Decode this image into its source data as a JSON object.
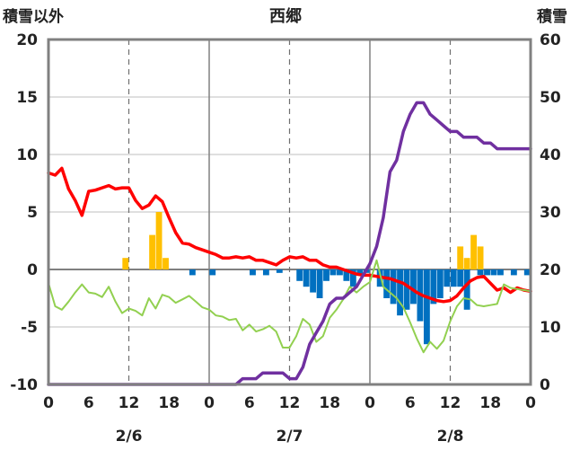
{
  "chart_data": {
    "type": "combo",
    "title": "西郷",
    "left_axis_label": "積雪以外",
    "right_axis_label": "積雪",
    "left_ylim": [
      -10,
      20
    ],
    "left_ticks": [
      "20",
      "15",
      "10",
      "5",
      "0",
      "-5",
      "-10"
    ],
    "right_ylim": [
      0,
      60
    ],
    "right_ticks": [
      "60",
      "50",
      "40",
      "30",
      "20",
      "10",
      "0"
    ],
    "x_hours_range": [
      0,
      72
    ],
    "x_tick_hours": [
      0,
      6,
      12,
      18,
      24,
      30,
      36,
      42,
      48,
      54,
      60,
      66,
      72
    ],
    "x_tick_labels": [
      "0",
      "6",
      "12",
      "18",
      "0",
      "6",
      "12",
      "18",
      "0",
      "6",
      "12",
      "18",
      "0"
    ],
    "day_labels": [
      {
        "hour": 12,
        "label": "2/6"
      },
      {
        "hour": 36,
        "label": "2/7"
      },
      {
        "hour": 60,
        "label": "2/8"
      }
    ],
    "grid": {
      "dashed_hours": [
        12,
        36,
        60
      ],
      "solid_hours": [
        24,
        48
      ],
      "horizontal": true
    },
    "colors": {
      "red": "#ff0000",
      "green": "#92d050",
      "purple": "#7030a0",
      "orange_bar": "#ffc000",
      "blue_bar": "#0070c0"
    },
    "series": [
      {
        "type": "line",
        "axis": "left",
        "color": "#ff0000",
        "values": [
          8.4,
          8.2,
          8.8,
          7.0,
          6.0,
          4.7,
          6.8,
          6.9,
          7.1,
          7.3,
          7.0,
          7.1,
          7.1,
          6.0,
          5.3,
          5.6,
          6.4,
          5.9,
          4.5,
          3.2,
          2.3,
          2.2,
          1.9,
          1.7,
          1.5,
          1.3,
          1.0,
          1.0,
          1.1,
          1.0,
          1.1,
          0.8,
          0.8,
          0.6,
          0.4,
          0.8,
          1.1,
          1.0,
          1.1,
          0.8,
          0.8,
          0.4,
          0.2,
          0.2,
          0.0,
          -0.2,
          -0.4,
          -0.5,
          -0.5,
          -0.6,
          -0.7,
          -0.8,
          -1.0,
          -1.2,
          -1.6,
          -2.0,
          -2.3,
          -2.5,
          -2.7,
          -2.8,
          -2.7,
          -2.3,
          -1.6,
          -1.0,
          -0.7,
          -0.6,
          -1.2,
          -1.8,
          -1.6,
          -2.0,
          -1.6,
          -1.8,
          -1.9
        ]
      },
      {
        "type": "line",
        "axis": "left",
        "color": "#92d050",
        "values": [
          -1.2,
          -3.2,
          -3.5,
          -2.8,
          -2.0,
          -1.3,
          -2.0,
          -2.1,
          -2.4,
          -1.5,
          -2.8,
          -3.8,
          -3.4,
          -3.6,
          -4.0,
          -2.5,
          -3.4,
          -2.2,
          -2.4,
          -2.9,
          -2.6,
          -2.3,
          -2.8,
          -3.3,
          -3.5,
          -4.0,
          -4.1,
          -4.4,
          -4.3,
          -5.3,
          -4.8,
          -5.4,
          -5.2,
          -4.9,
          -5.4,
          -6.8,
          -6.8,
          -5.8,
          -4.3,
          -4.8,
          -6.3,
          -5.8,
          -4.2,
          -3.5,
          -2.6,
          -1.5,
          -2.0,
          -1.5,
          -1.1,
          0.8,
          -1.5,
          -2.0,
          -2.5,
          -3.3,
          -4.6,
          -6.0,
          -7.2,
          -6.3,
          -6.9,
          -6.2,
          -4.5,
          -3.2,
          -2.5,
          -2.6,
          -3.1,
          -3.2,
          -3.1,
          -3.0,
          -1.3,
          -1.6,
          -1.7,
          -1.8,
          -1.9
        ]
      },
      {
        "type": "line",
        "axis": "right",
        "color": "#7030a0",
        "values": [
          0,
          0,
          0,
          0,
          0,
          0,
          0,
          0,
          0,
          0,
          0,
          0,
          0,
          0,
          0,
          0,
          0,
          0,
          0,
          0,
          0,
          0,
          0,
          0,
          0,
          0,
          0,
          0,
          0,
          1,
          1,
          1,
          2,
          2,
          2,
          2,
          1,
          1,
          3,
          7,
          9,
          11,
          14,
          15,
          15,
          16,
          17,
          19,
          21,
          24,
          29,
          37,
          39,
          44,
          47,
          49,
          49,
          47,
          46,
          45,
          44,
          44,
          43,
          43,
          43,
          42,
          42,
          41,
          41,
          41,
          41,
          41,
          41
        ]
      },
      {
        "type": "bar",
        "axis": "left",
        "color": "#ffc000",
        "bars": [
          [
            12,
            1.0
          ],
          [
            16,
            3.0
          ],
          [
            17,
            5.0
          ],
          [
            18,
            1.0
          ],
          [
            62,
            2.0
          ],
          [
            63,
            1.0
          ],
          [
            64,
            3.0
          ],
          [
            65,
            2.0
          ]
        ]
      },
      {
        "type": "bar",
        "axis": "left",
        "color": "#0070c0",
        "bars": [
          [
            22,
            -0.5
          ],
          [
            25,
            -0.5
          ],
          [
            31,
            -0.5
          ],
          [
            33,
            -0.5
          ],
          [
            35,
            -0.3
          ],
          [
            38,
            -1.0
          ],
          [
            39,
            -1.5
          ],
          [
            40,
            -2.0
          ],
          [
            41,
            -2.5
          ],
          [
            42,
            -1.0
          ],
          [
            43,
            -0.5
          ],
          [
            44,
            -0.5
          ],
          [
            45,
            -1.0
          ],
          [
            46,
            -1.5
          ],
          [
            47,
            -0.5
          ],
          [
            48,
            -0.3
          ],
          [
            50,
            -1.5
          ],
          [
            51,
            -2.5
          ],
          [
            52,
            -3.0
          ],
          [
            53,
            -4.0
          ],
          [
            54,
            -3.5
          ],
          [
            55,
            -3.0
          ],
          [
            56,
            -4.5
          ],
          [
            57,
            -6.5
          ],
          [
            58,
            -3.0
          ],
          [
            59,
            -2.5
          ],
          [
            60,
            -1.5
          ],
          [
            61,
            -1.5
          ],
          [
            62,
            -1.5
          ],
          [
            63,
            -3.5
          ],
          [
            65,
            -0.5
          ],
          [
            66,
            -0.5
          ],
          [
            67,
            -0.5
          ],
          [
            68,
            -0.5
          ],
          [
            70,
            -0.5
          ],
          [
            72,
            -0.5
          ]
        ]
      }
    ]
  }
}
